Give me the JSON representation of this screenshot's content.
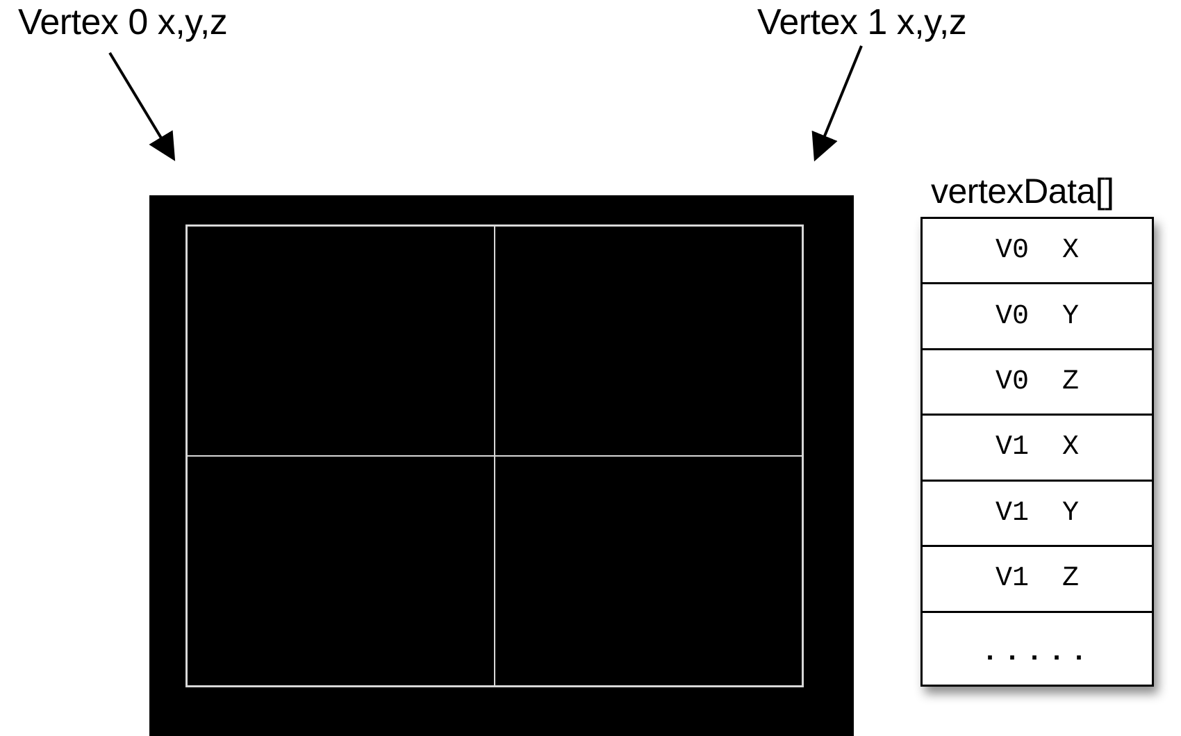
{
  "labels": {
    "vertex0": "Vertex 0 x,y,z",
    "vertex1": "Vertex 1 x,y,z",
    "array_name": "vertexData[]"
  },
  "array_slots": [
    "V0  X",
    "V0  Y",
    "V0  Z",
    "V1  X",
    "V1  Y",
    "V1  Z",
    "....."
  ],
  "grid": {
    "columns": 2,
    "rows": 2
  }
}
